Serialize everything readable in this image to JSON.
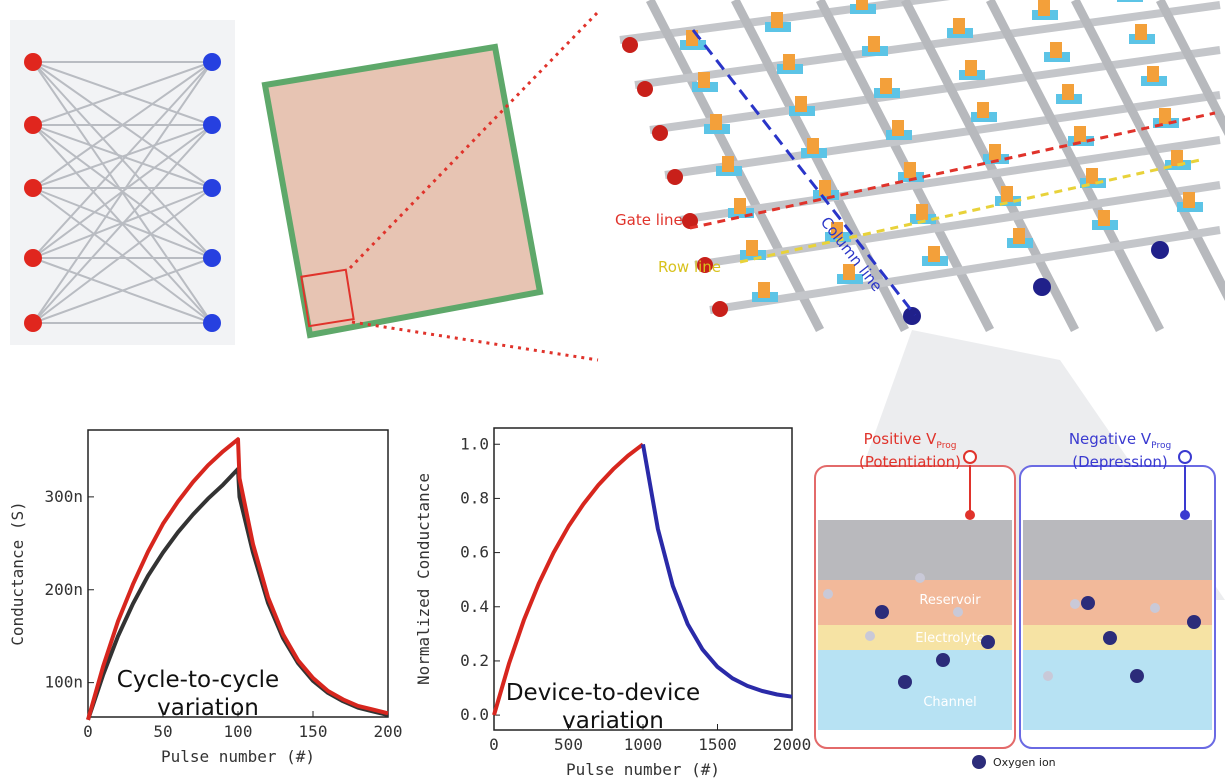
{
  "chart_data": [
    {
      "type": "line",
      "x_label": "Pulse number (#)",
      "y_label": "Conductance (S)",
      "annotation": [
        "Cycle-to-cycle",
        "variation"
      ],
      "x": [
        0,
        10,
        20,
        30,
        40,
        50,
        60,
        70,
        80,
        90,
        100,
        101,
        110,
        120,
        130,
        140,
        150,
        160,
        170,
        180,
        190,
        200
      ],
      "series": [
        {
          "color": "#333333",
          "values": [
            6e-08,
            1.08e-07,
            1.5e-07,
            1.85e-07,
            2.15e-07,
            2.4e-07,
            2.62e-07,
            2.81e-07,
            2.98e-07,
            3.13e-07,
            3.3e-07,
            3e-07,
            2.4e-07,
            1.86e-07,
            1.48e-07,
            1.21e-07,
            1.02e-07,
            8.9e-08,
            8e-08,
            7.3e-08,
            6.9e-08,
            6.5e-08
          ]
        },
        {
          "color": "#d7261e",
          "values": [
            6e-08,
            1.17e-07,
            1.66e-07,
            2.06e-07,
            2.41e-07,
            2.71e-07,
            2.95e-07,
            3.16e-07,
            3.34e-07,
            3.49e-07,
            3.62e-07,
            3.2e-07,
            2.49e-07,
            1.92e-07,
            1.52e-07,
            1.24e-07,
            1.05e-07,
            9.1e-08,
            8.2e-08,
            7.5e-08,
            7.1e-08,
            6.7e-08
          ]
        }
      ],
      "xlim": [
        0,
        200
      ],
      "xticks": [
        0,
        50,
        100,
        150,
        200
      ],
      "ylim": [
        6.3e-08,
        3.72e-07
      ],
      "yticks": [
        {
          "value": 1e-07,
          "label": "100n"
        },
        {
          "value": 2e-07,
          "label": "200n"
        },
        {
          "value": 3e-07,
          "label": "300n"
        }
      ]
    },
    {
      "type": "line",
      "x_label": "Pulse number (#)",
      "y_label": "Normalized Conductance",
      "annotation": [
        "Device-to-device",
        "variation"
      ],
      "series": [
        {
          "color": "#d7261e",
          "x": [
            0,
            100,
            200,
            300,
            400,
            500,
            600,
            700,
            800,
            900,
            1000
          ],
          "values": [
            0,
            0.189,
            0.35,
            0.485,
            0.6,
            0.697,
            0.779,
            0.849,
            0.908,
            0.958,
            1.0
          ]
        },
        {
          "color": "#2a2aa8",
          "x": [
            1000,
            1100,
            1200,
            1300,
            1400,
            1500,
            1600,
            1700,
            1800,
            1900,
            2000
          ],
          "values": [
            1.0,
            0.687,
            0.477,
            0.336,
            0.242,
            0.178,
            0.136,
            0.108,
            0.089,
            0.076,
            0.068
          ]
        }
      ],
      "xlim": [
        0,
        2000
      ],
      "xticks": [
        0,
        500,
        1000,
        1500,
        2000
      ],
      "ylim": [
        -0.055,
        1.06
      ],
      "yticks": [
        {
          "value": 0,
          "label": "0.0"
        },
        0.2,
        0.4,
        0.6,
        0.8,
        {
          "value": 1,
          "label": "1.0"
        }
      ]
    }
  ],
  "diagram": {
    "gate_line": "Gate line",
    "row_line": "Row line",
    "column_line": "Column line",
    "positive": "Positive V",
    "positive_sub": "Prog",
    "potentiation": "(Potentiation)",
    "negative": "Negative V",
    "negative_sub": "Prog",
    "depression": "(Depression)",
    "reservoir": "Reservoir",
    "electrolyte": "Electrolyte",
    "channel": "Channel",
    "oxygen_ion": "Oxygen ion"
  }
}
